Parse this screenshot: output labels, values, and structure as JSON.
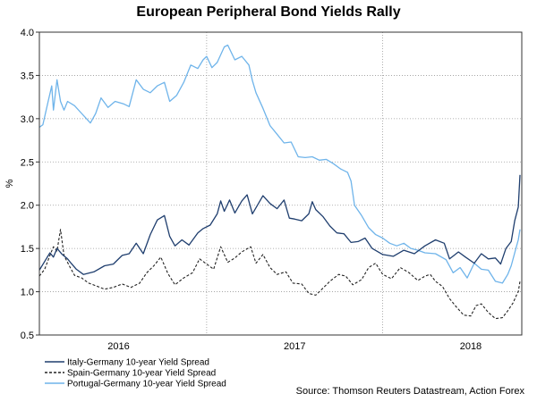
{
  "chart_data": {
    "type": "line",
    "title": "European Peripheral Bond Yields Rally",
    "ylabel": "%",
    "xlabel": "",
    "ylim": [
      0.5,
      4.0
    ],
    "yticks": [
      "0.5",
      "1.0",
      "1.5",
      "2.0",
      "2.5",
      "3.0",
      "3.5",
      "4.0"
    ],
    "x_range": [
      2015.55,
      2018.29
    ],
    "xticks": [
      {
        "label": "2016",
        "x": 2016.0
      },
      {
        "label": "2017",
        "x": 2017.0
      },
      {
        "label": "2018",
        "x": 2018.0
      }
    ],
    "year_gridlines": [
      2015.55,
      2016.5,
      2017.5
    ],
    "grid": true,
    "legend_position": "bottom-left",
    "source": "Source: Thomson Reuters Datastream, Action Forex",
    "series": [
      {
        "name": "Italy-Germany 10-year Yield Spread",
        "color": "#1f3e6e",
        "dash": "solid",
        "points": [
          [
            2015.55,
            1.25
          ],
          [
            2015.58,
            1.35
          ],
          [
            2015.61,
            1.45
          ],
          [
            2015.63,
            1.4
          ],
          [
            2015.65,
            1.5
          ],
          [
            2015.68,
            1.43
          ],
          [
            2015.71,
            1.38
          ],
          [
            2015.73,
            1.33
          ],
          [
            2015.76,
            1.26
          ],
          [
            2015.8,
            1.2
          ],
          [
            2015.86,
            1.23
          ],
          [
            2015.92,
            1.3
          ],
          [
            2015.97,
            1.32
          ],
          [
            2016.02,
            1.42
          ],
          [
            2016.06,
            1.44
          ],
          [
            2016.1,
            1.56
          ],
          [
            2016.14,
            1.44
          ],
          [
            2016.18,
            1.66
          ],
          [
            2016.22,
            1.83
          ],
          [
            2016.26,
            1.88
          ],
          [
            2016.29,
            1.64
          ],
          [
            2016.32,
            1.53
          ],
          [
            2016.36,
            1.6
          ],
          [
            2016.4,
            1.54
          ],
          [
            2016.45,
            1.68
          ],
          [
            2016.48,
            1.73
          ],
          [
            2016.52,
            1.77
          ],
          [
            2016.56,
            1.9
          ],
          [
            2016.58,
            2.05
          ],
          [
            2016.6,
            1.93
          ],
          [
            2016.63,
            2.06
          ],
          [
            2016.66,
            1.91
          ],
          [
            2016.7,
            2.05
          ],
          [
            2016.73,
            2.12
          ],
          [
            2016.76,
            1.9
          ],
          [
            2016.78,
            1.97
          ],
          [
            2016.82,
            2.11
          ],
          [
            2016.86,
            2.02
          ],
          [
            2016.9,
            1.96
          ],
          [
            2016.94,
            2.06
          ],
          [
            2016.97,
            1.85
          ],
          [
            2017.0,
            1.84
          ],
          [
            2017.04,
            1.82
          ],
          [
            2017.08,
            1.9
          ],
          [
            2017.1,
            2.04
          ],
          [
            2017.12,
            1.95
          ],
          [
            2017.16,
            1.87
          ],
          [
            2017.2,
            1.76
          ],
          [
            2017.24,
            1.68
          ],
          [
            2017.28,
            1.67
          ],
          [
            2017.32,
            1.57
          ],
          [
            2017.36,
            1.58
          ],
          [
            2017.4,
            1.62
          ],
          [
            2017.44,
            1.5
          ],
          [
            2017.5,
            1.43
          ],
          [
            2017.56,
            1.41
          ],
          [
            2017.62,
            1.48
          ],
          [
            2017.68,
            1.44
          ],
          [
            2017.74,
            1.53
          ],
          [
            2017.8,
            1.6
          ],
          [
            2017.85,
            1.56
          ],
          [
            2017.88,
            1.38
          ],
          [
            2017.93,
            1.46
          ],
          [
            2017.97,
            1.4
          ],
          [
            2018.02,
            1.33
          ],
          [
            2018.06,
            1.44
          ],
          [
            2018.1,
            1.38
          ],
          [
            2018.14,
            1.39
          ],
          [
            2018.17,
            1.32
          ],
          [
            2018.2,
            1.5
          ],
          [
            2018.23,
            1.58
          ],
          [
            2018.25,
            1.82
          ],
          [
            2018.27,
            1.98
          ],
          [
            2018.28,
            2.35
          ]
        ]
      },
      {
        "name": "Spain-Germany 10-year Yield Spread",
        "color": "#222222",
        "dash": "dashed",
        "points": [
          [
            2015.55,
            1.18
          ],
          [
            2015.58,
            1.26
          ],
          [
            2015.61,
            1.42
          ],
          [
            2015.63,
            1.52
          ],
          [
            2015.65,
            1.47
          ],
          [
            2015.67,
            1.72
          ],
          [
            2015.69,
            1.42
          ],
          [
            2015.72,
            1.3
          ],
          [
            2015.75,
            1.19
          ],
          [
            2015.79,
            1.16
          ],
          [
            2015.83,
            1.1
          ],
          [
            2015.87,
            1.07
          ],
          [
            2015.92,
            1.03
          ],
          [
            2015.97,
            1.05
          ],
          [
            2016.02,
            1.09
          ],
          [
            2016.07,
            1.05
          ],
          [
            2016.12,
            1.1
          ],
          [
            2016.16,
            1.22
          ],
          [
            2016.2,
            1.3
          ],
          [
            2016.24,
            1.4
          ],
          [
            2016.28,
            1.21
          ],
          [
            2016.32,
            1.08
          ],
          [
            2016.37,
            1.16
          ],
          [
            2016.42,
            1.22
          ],
          [
            2016.46,
            1.38
          ],
          [
            2016.5,
            1.32
          ],
          [
            2016.54,
            1.26
          ],
          [
            2016.58,
            1.52
          ],
          [
            2016.62,
            1.34
          ],
          [
            2016.66,
            1.39
          ],
          [
            2016.7,
            1.46
          ],
          [
            2016.75,
            1.52
          ],
          [
            2016.78,
            1.33
          ],
          [
            2016.82,
            1.43
          ],
          [
            2016.86,
            1.28
          ],
          [
            2016.9,
            1.2
          ],
          [
            2016.95,
            1.23
          ],
          [
            2016.99,
            1.1
          ],
          [
            2017.04,
            1.09
          ],
          [
            2017.08,
            0.98
          ],
          [
            2017.12,
            0.96
          ],
          [
            2017.16,
            1.04
          ],
          [
            2017.2,
            1.12
          ],
          [
            2017.25,
            1.2
          ],
          [
            2017.29,
            1.18
          ],
          [
            2017.33,
            1.08
          ],
          [
            2017.38,
            1.14
          ],
          [
            2017.42,
            1.28
          ],
          [
            2017.46,
            1.33
          ],
          [
            2017.5,
            1.2
          ],
          [
            2017.55,
            1.15
          ],
          [
            2017.6,
            1.28
          ],
          [
            2017.65,
            1.22
          ],
          [
            2017.7,
            1.13
          ],
          [
            2017.74,
            1.18
          ],
          [
            2017.77,
            1.2
          ],
          [
            2017.8,
            1.12
          ],
          [
            2017.84,
            1.06
          ],
          [
            2017.88,
            0.92
          ],
          [
            2017.92,
            0.82
          ],
          [
            2017.96,
            0.73
          ],
          [
            2018.0,
            0.72
          ],
          [
            2018.03,
            0.84
          ],
          [
            2018.06,
            0.86
          ],
          [
            2018.1,
            0.76
          ],
          [
            2018.14,
            0.69
          ],
          [
            2018.18,
            0.7
          ],
          [
            2018.21,
            0.78
          ],
          [
            2018.24,
            0.87
          ],
          [
            2018.26,
            0.96
          ],
          [
            2018.27,
            1.0
          ],
          [
            2018.28,
            1.12
          ]
        ]
      },
      {
        "name": "Portugal-Germany 10-year Yield Spread",
        "color": "#6fb4ea",
        "dash": "solid",
        "points": [
          [
            2015.55,
            2.9
          ],
          [
            2015.57,
            2.93
          ],
          [
            2015.6,
            3.2
          ],
          [
            2015.62,
            3.38
          ],
          [
            2015.63,
            3.1
          ],
          [
            2015.65,
            3.45
          ],
          [
            2015.67,
            3.2
          ],
          [
            2015.69,
            3.1
          ],
          [
            2015.71,
            3.2
          ],
          [
            2015.75,
            3.15
          ],
          [
            2015.79,
            3.06
          ],
          [
            2015.84,
            2.95
          ],
          [
            2015.87,
            3.06
          ],
          [
            2015.9,
            3.24
          ],
          [
            2015.94,
            3.13
          ],
          [
            2015.98,
            3.2
          ],
          [
            2016.03,
            3.17
          ],
          [
            2016.06,
            3.14
          ],
          [
            2016.1,
            3.45
          ],
          [
            2016.14,
            3.34
          ],
          [
            2016.18,
            3.3
          ],
          [
            2016.22,
            3.38
          ],
          [
            2016.26,
            3.42
          ],
          [
            2016.29,
            3.2
          ],
          [
            2016.33,
            3.27
          ],
          [
            2016.37,
            3.42
          ],
          [
            2016.41,
            3.62
          ],
          [
            2016.45,
            3.58
          ],
          [
            2016.48,
            3.68
          ],
          [
            2016.5,
            3.72
          ],
          [
            2016.53,
            3.59
          ],
          [
            2016.56,
            3.65
          ],
          [
            2016.6,
            3.83
          ],
          [
            2016.62,
            3.85
          ],
          [
            2016.66,
            3.68
          ],
          [
            2016.7,
            3.72
          ],
          [
            2016.74,
            3.62
          ],
          [
            2016.76,
            3.44
          ],
          [
            2016.78,
            3.3
          ],
          [
            2016.82,
            3.12
          ],
          [
            2016.86,
            2.92
          ],
          [
            2016.9,
            2.82
          ],
          [
            2016.94,
            2.72
          ],
          [
            2016.98,
            2.73
          ],
          [
            2017.02,
            2.56
          ],
          [
            2017.06,
            2.55
          ],
          [
            2017.1,
            2.56
          ],
          [
            2017.14,
            2.52
          ],
          [
            2017.18,
            2.53
          ],
          [
            2017.22,
            2.48
          ],
          [
            2017.26,
            2.42
          ],
          [
            2017.3,
            2.38
          ],
          [
            2017.32,
            2.28
          ],
          [
            2017.34,
            2.0
          ],
          [
            2017.38,
            1.88
          ],
          [
            2017.42,
            1.74
          ],
          [
            2017.46,
            1.66
          ],
          [
            2017.5,
            1.62
          ],
          [
            2017.54,
            1.56
          ],
          [
            2017.58,
            1.53
          ],
          [
            2017.62,
            1.56
          ],
          [
            2017.66,
            1.5
          ],
          [
            2017.7,
            1.48
          ],
          [
            2017.74,
            1.45
          ],
          [
            2017.8,
            1.44
          ],
          [
            2017.86,
            1.37
          ],
          [
            2017.9,
            1.22
          ],
          [
            2017.94,
            1.28
          ],
          [
            2017.98,
            1.16
          ],
          [
            2018.02,
            1.33
          ],
          [
            2018.06,
            1.26
          ],
          [
            2018.1,
            1.25
          ],
          [
            2018.14,
            1.12
          ],
          [
            2018.18,
            1.1
          ],
          [
            2018.21,
            1.2
          ],
          [
            2018.23,
            1.3
          ],
          [
            2018.25,
            1.45
          ],
          [
            2018.27,
            1.6
          ],
          [
            2018.28,
            1.72
          ]
        ]
      }
    ]
  }
}
